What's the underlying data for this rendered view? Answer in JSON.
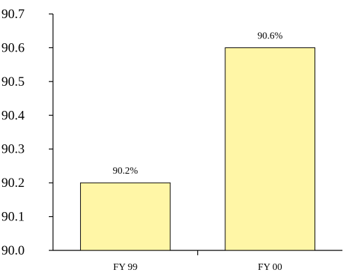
{
  "chart_data": {
    "type": "bar",
    "title": "",
    "xlabel": "",
    "ylabel": "",
    "categories": [
      "FY 99",
      "FY 00"
    ],
    "values": [
      90.2,
      90.6
    ],
    "data_labels": [
      "90.2%",
      "90.6%"
    ],
    "ylim": [
      90.0,
      90.7
    ],
    "yticks": [
      90.0,
      90.1,
      90.2,
      90.3,
      90.4,
      90.5,
      90.6,
      90.7
    ],
    "ytick_labels": [
      "90.0",
      "90.1",
      "90.2",
      "90.3",
      "90.4",
      "90.5",
      "90.6",
      "90.7"
    ],
    "grid": false,
    "legend": "none",
    "colors": {
      "bar_fill": "#FFF6A6",
      "bar_stroke": "#000000",
      "axis": "#000000"
    }
  }
}
